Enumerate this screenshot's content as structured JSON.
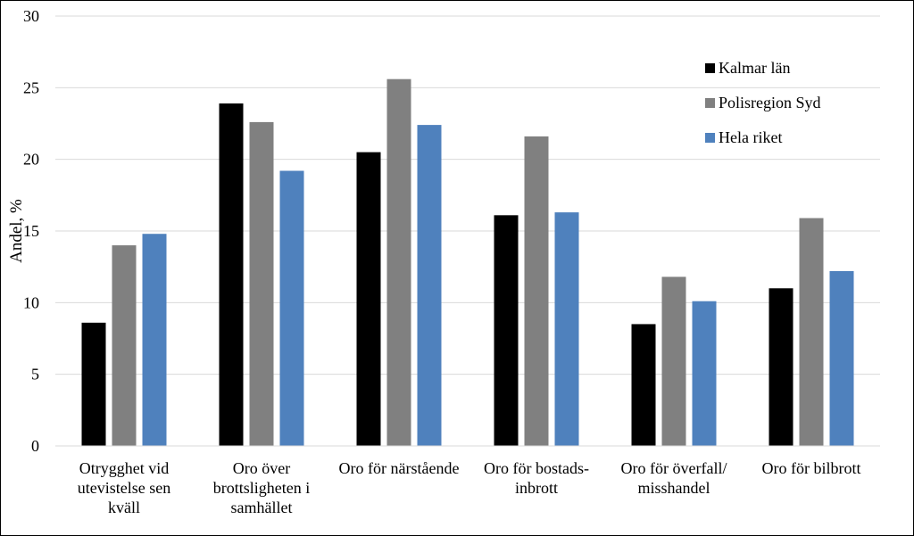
{
  "chart_data": {
    "type": "bar",
    "title": "",
    "xlabel": "",
    "ylabel": "Andel, %",
    "ylim": [
      0,
      30
    ],
    "yticks": [
      0,
      5,
      10,
      15,
      20,
      25,
      30
    ],
    "grid": "horizontal",
    "legend_position": "top-right",
    "categories": [
      [
        "Otrygghet vid",
        "utevistelse sen",
        "kväll"
      ],
      [
        "Oro över",
        "brottsligheten i",
        "samhället"
      ],
      [
        "Oro för närstående"
      ],
      [
        "Oro för bostads-",
        "inbrott"
      ],
      [
        "Oro för överfall/",
        "misshandel"
      ],
      [
        "Oro för bilbrott"
      ]
    ],
    "series": [
      {
        "name": "Kalmar län",
        "color": "#000000",
        "values": [
          8.6,
          23.9,
          20.5,
          16.1,
          8.5,
          11.0
        ]
      },
      {
        "name": "Polisregion Syd",
        "color": "#808080",
        "values": [
          14.0,
          22.6,
          25.6,
          21.6,
          11.8,
          15.9
        ]
      },
      {
        "name": "Hela riket",
        "color": "#4f81bd",
        "values": [
          14.8,
          19.2,
          22.4,
          16.3,
          10.1,
          12.2
        ]
      }
    ]
  }
}
